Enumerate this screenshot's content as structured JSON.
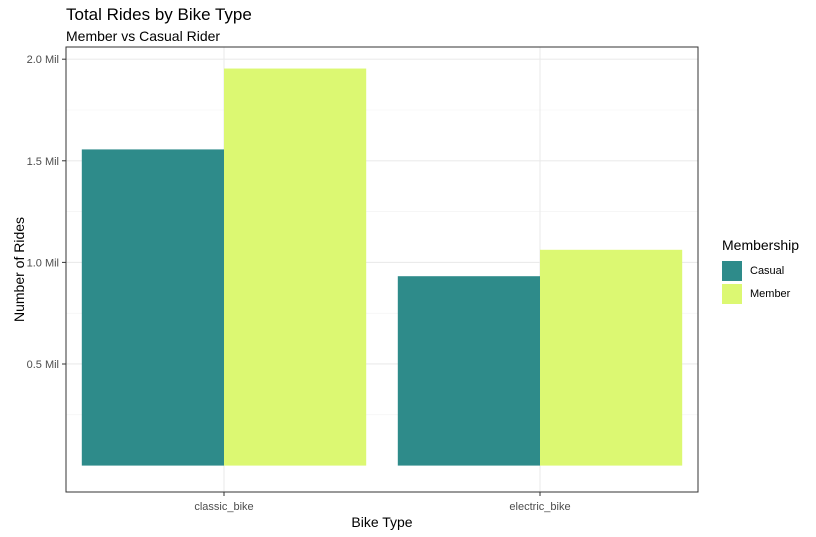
{
  "chart_data": {
    "type": "bar",
    "title": "Total Rides by Bike Type",
    "subtitle": "Member vs Casual Rider",
    "xlabel": "Bike Type",
    "ylabel": "Number of Rides",
    "categories": [
      "classic_bike",
      "electric_bike"
    ],
    "series": [
      {
        "name": "Casual",
        "color": "#2e8b8a",
        "values": [
          1556000,
          932000
        ]
      },
      {
        "name": "Member",
        "color": "#dcf872",
        "values": [
          1954000,
          1062000
        ]
      }
    ],
    "yticks": [
      {
        "value": 500000,
        "label": "0.5 Mil"
      },
      {
        "value": 1000000,
        "label": "1.0 Mil"
      },
      {
        "value": 1500000,
        "label": "1.5 Mil"
      },
      {
        "value": 2000000,
        "label": "2.0 Mil"
      }
    ],
    "ylim": [
      -130000,
      2060000
    ],
    "grid": true,
    "legend": {
      "title": "Membership",
      "placement": "right"
    }
  }
}
